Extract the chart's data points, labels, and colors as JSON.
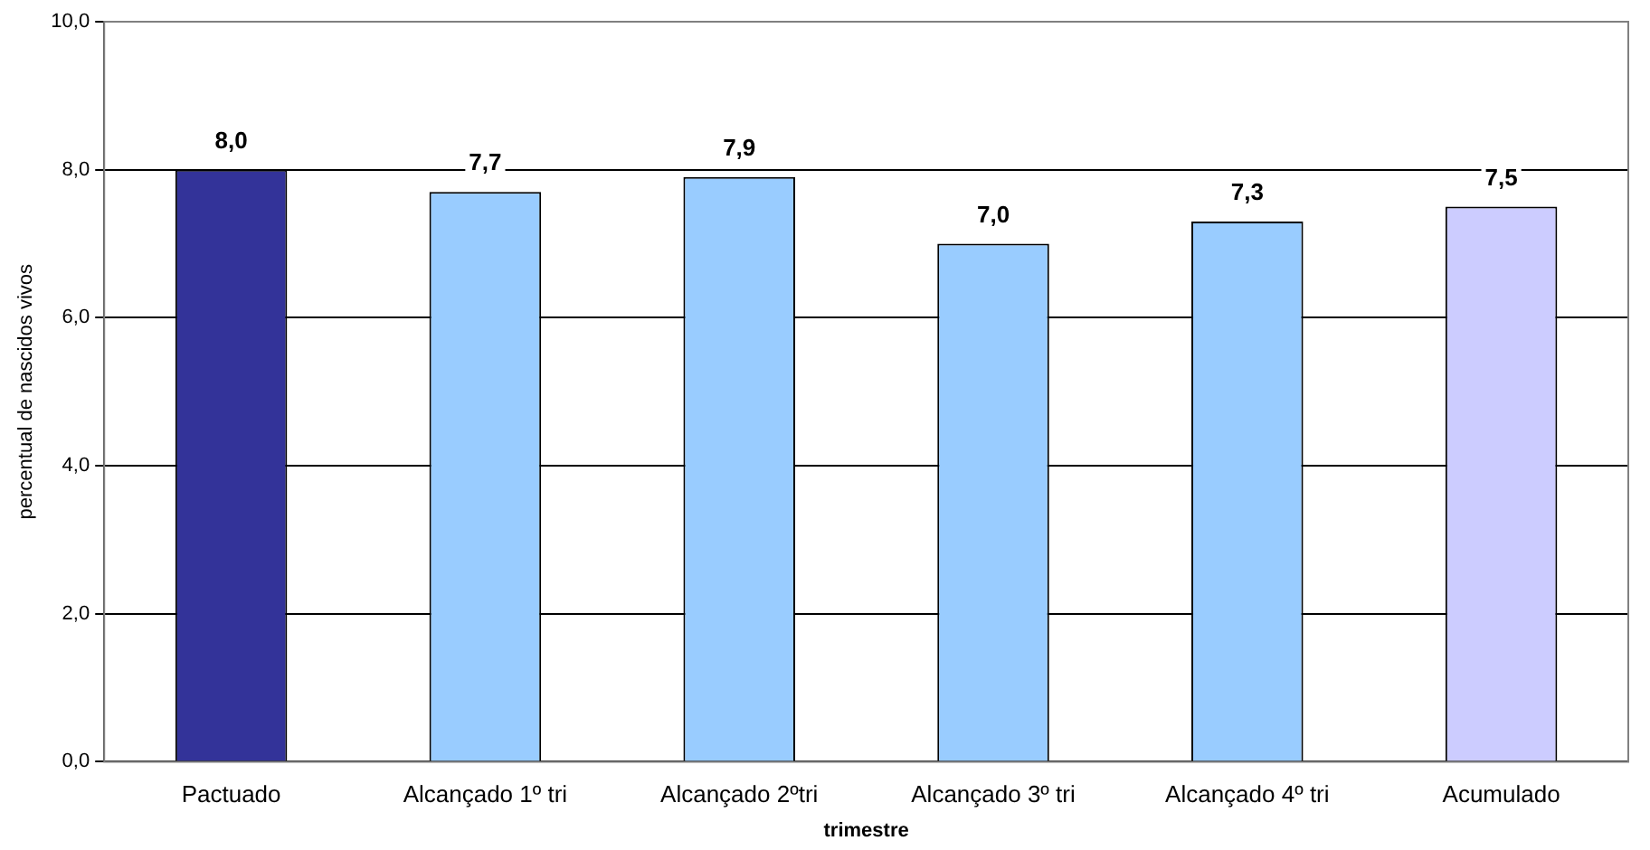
{
  "chart_data": {
    "type": "bar",
    "xlabel": "trimestre",
    "ylabel": "percentual de nascidos vivos",
    "categories": [
      "Pactuado",
      "Alcançado 1º tri",
      "Alcançado 2ºtri",
      "Alcançado 3º tri",
      "Alcançado 4º tri",
      "Acumulado"
    ],
    "values": [
      8.0,
      7.7,
      7.9,
      7.0,
      7.3,
      7.5
    ],
    "colors": [
      "#333399",
      "#99ccff",
      "#99ccff",
      "#99ccff",
      "#99ccff",
      "#ccccff"
    ],
    "value_labels": [
      "8,0",
      "7,7",
      "7,9",
      "7,0",
      "7,3",
      "7,5"
    ],
    "ylim": [
      0,
      10
    ],
    "yticks": [
      {
        "value": 0,
        "label": "0,0"
      },
      {
        "value": 2,
        "label": "2,0"
      },
      {
        "value": 4,
        "label": "4,0"
      },
      {
        "value": 6,
        "label": "6,0"
      },
      {
        "value": 8,
        "label": "8,0"
      },
      {
        "value": 10,
        "label": "10,0"
      }
    ],
    "grid": "y",
    "legend": false
  }
}
